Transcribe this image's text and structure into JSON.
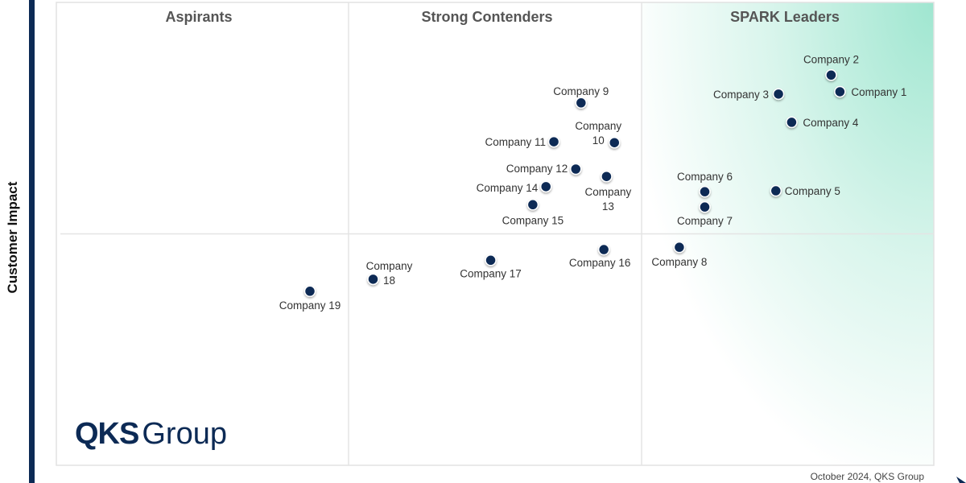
{
  "chart_data": {
    "type": "scatter",
    "title": "",
    "ylabel": "Customer Impact",
    "xlabel": "",
    "xlim": [
      0,
      100
    ],
    "ylim": [
      0,
      100
    ],
    "grid": false,
    "dividers": {
      "x": [
        33.3,
        66.7
      ],
      "y": [
        50
      ]
    },
    "quadrants": [
      "Aspirants",
      "Strong Contenders",
      "SPARK Leaders"
    ],
    "points": [
      {
        "name": "Company 1",
        "x": 89.3,
        "y": 80.7
      },
      {
        "name": "Company 2",
        "x": 88.3,
        "y": 84.3
      },
      {
        "name": "Company 3",
        "x": 82.3,
        "y": 80.2
      },
      {
        "name": "Company 4",
        "x": 83.8,
        "y": 74.1
      },
      {
        "name": "Company 5",
        "x": 82.0,
        "y": 59.3
      },
      {
        "name": "Company 6",
        "x": 73.9,
        "y": 59.1
      },
      {
        "name": "Company 7",
        "x": 73.9,
        "y": 55.8
      },
      {
        "name": "Company 8",
        "x": 71.0,
        "y": 47.1
      },
      {
        "name": "Company 9",
        "x": 59.8,
        "y": 78.3
      },
      {
        "name": "Company 10",
        "x": 63.6,
        "y": 69.7
      },
      {
        "name": "Company 11",
        "x": 56.7,
        "y": 69.9
      },
      {
        "name": "Company 12",
        "x": 59.2,
        "y": 64.0
      },
      {
        "name": "Company 13",
        "x": 62.7,
        "y": 62.4
      },
      {
        "name": "Company 14",
        "x": 55.8,
        "y": 60.2
      },
      {
        "name": "Company 15",
        "x": 54.3,
        "y": 56.3
      },
      {
        "name": "Company 16",
        "x": 62.4,
        "y": 46.6
      },
      {
        "name": "Company 17",
        "x": 49.5,
        "y": 44.3
      },
      {
        "name": "Company 18",
        "x": 36.1,
        "y": 40.2
      },
      {
        "name": "Company 19",
        "x": 28.9,
        "y": 37.6
      }
    ],
    "colors": {
      "point": "#0c2a55",
      "leaders_gradient": "#9fe6d0"
    }
  },
  "footer": "October 2024, QKS Group",
  "logo": {
    "bold": "QKS",
    "rest": "Group"
  }
}
